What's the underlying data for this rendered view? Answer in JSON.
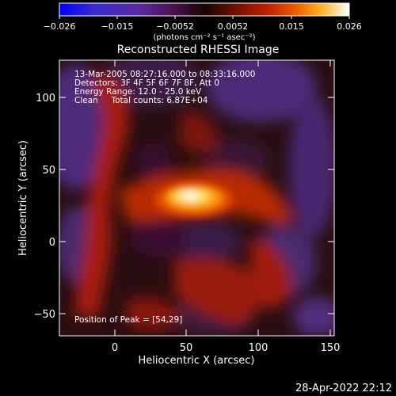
{
  "colorbar": {
    "tick_labels": [
      "−0.026",
      "−0.015",
      "−0.0052",
      "0.0052",
      "0.015",
      "0.026"
    ],
    "unit_label": "(photons cm⁻² s⁻¹ asec⁻²)",
    "colors": [
      "#0000ff",
      "#3a2bd0",
      "#5a2aa0",
      "#6a1e6a",
      "#200818",
      "#3a0a00",
      "#8a1500",
      "#c22000",
      "#e84a00",
      "#ffa000",
      "#fff070",
      "#ffffff"
    ]
  },
  "title": "Reconstructed RHESSI Image",
  "info": {
    "line1": "13-Mar-2005 08:27:16.000 to 08:33:16.000",
    "line2": "Detectors: 3F 4F 5F 6F 7F 8F, Att 0",
    "line3": "Energy Range: 12.0 - 25.0 keV",
    "line4": "Clean     Total counts: 6.87E+04"
  },
  "peak_label": "Position of Peak = [54,29]",
  "axes": {
    "xlabel": "Heliocentric X (arcsec)",
    "ylabel": "Heliocentric Y (arcsec)",
    "x_ticks": [
      "0",
      "50",
      "100",
      "150"
    ],
    "y_ticks": [
      "100",
      "50",
      "0",
      "−50"
    ]
  },
  "timestamp": "28-Apr-2022 22:12"
}
